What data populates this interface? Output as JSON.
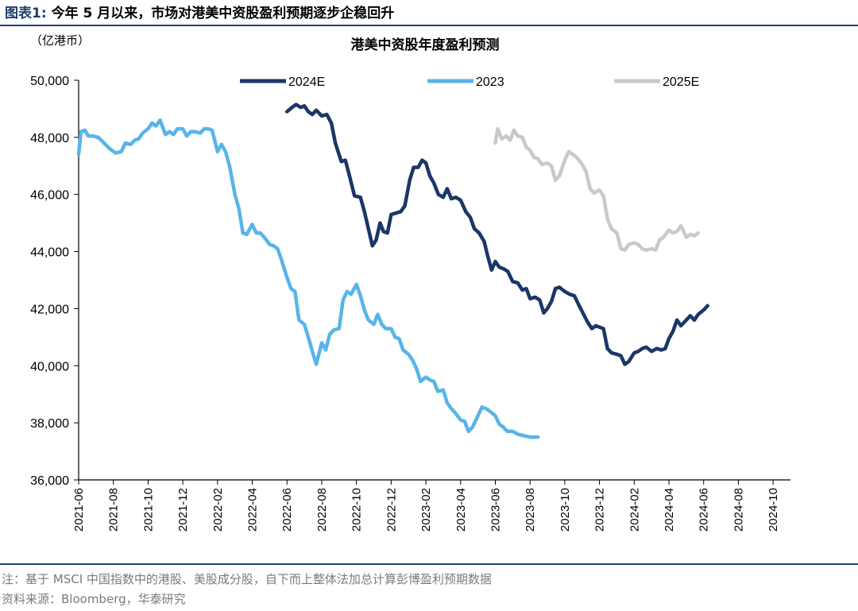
{
  "header": {
    "figure_label": "图表1:",
    "figure_title": "今年 5 月以来，市场对港美中资股盈利预期逐步企稳回升"
  },
  "footer": {
    "note": "注：基于 MSCI 中国指数中的港股、美股成分股，自下而上整体法加总计算彭博盈利预期数据",
    "source": "资料来源：Bloomberg，华泰研究"
  },
  "colors": {
    "rule": "#1f3f6e",
    "series_2024E": "#1b3668",
    "series_2023": "#58b4e8",
    "series_2025E": "#c9c9c9"
  },
  "chart_data": {
    "type": "line",
    "title": "港美中资股年度盈利预测",
    "unit_label": "（亿港币）",
    "ylim": [
      36000,
      50000
    ],
    "yticks": [
      36000,
      38000,
      40000,
      42000,
      44000,
      46000,
      48000,
      50000
    ],
    "ytick_labels": [
      "36,000",
      "38,000",
      "40,000",
      "42,000",
      "44,000",
      "46,000",
      "48,000",
      "50,000"
    ],
    "xlim": [
      "2021-06",
      "2024-11"
    ],
    "xtick_labels": [
      "2021-06",
      "2021-08",
      "2021-10",
      "2021-12",
      "2022-02",
      "2022-04",
      "2022-06",
      "2022-08",
      "2022-10",
      "2022-12",
      "2023-02",
      "2023-04",
      "2023-06",
      "2023-08",
      "2023-10",
      "2023-12",
      "2024-02",
      "2024-04",
      "2024-06",
      "2024-08",
      "2024-10"
    ],
    "grid": false,
    "legend_position": "top",
    "series": [
      {
        "name": "2024E",
        "color": "#1b3668",
        "points": [
          [
            "2022-06-01",
            48900
          ],
          [
            "2022-06-10",
            49050
          ],
          [
            "2022-06-17",
            49150
          ],
          [
            "2022-06-25",
            49050
          ],
          [
            "2022-07-01",
            49100
          ],
          [
            "2022-07-08",
            48900
          ],
          [
            "2022-07-15",
            48800
          ],
          [
            "2022-07-22",
            48950
          ],
          [
            "2022-08-01",
            48750
          ],
          [
            "2022-08-10",
            48800
          ],
          [
            "2022-08-18",
            48500
          ],
          [
            "2022-08-25",
            47800
          ],
          [
            "2022-09-05",
            47150
          ],
          [
            "2022-09-12",
            47200
          ],
          [
            "2022-09-20",
            46600
          ],
          [
            "2022-09-28",
            45950
          ],
          [
            "2022-10-08",
            45900
          ],
          [
            "2022-10-15",
            45400
          ],
          [
            "2022-10-22",
            44800
          ],
          [
            "2022-10-29",
            44200
          ],
          [
            "2022-11-05",
            44400
          ],
          [
            "2022-11-12",
            45000
          ],
          [
            "2022-11-18",
            44700
          ],
          [
            "2022-11-25",
            44650
          ],
          [
            "2022-12-01",
            45300
          ],
          [
            "2022-12-10",
            45350
          ],
          [
            "2022-12-18",
            45400
          ],
          [
            "2022-12-25",
            45600
          ],
          [
            "2023-01-03",
            46500
          ],
          [
            "2023-01-10",
            46950
          ],
          [
            "2023-01-18",
            46950
          ],
          [
            "2023-01-25",
            47200
          ],
          [
            "2023-02-01",
            47100
          ],
          [
            "2023-02-08",
            46650
          ],
          [
            "2023-02-15",
            46400
          ],
          [
            "2023-02-23",
            46000
          ],
          [
            "2023-03-01",
            45900
          ],
          [
            "2023-03-08",
            46200
          ],
          [
            "2023-03-15",
            45850
          ],
          [
            "2023-03-23",
            45900
          ],
          [
            "2023-04-01",
            45800
          ],
          [
            "2023-04-10",
            45400
          ],
          [
            "2023-04-18",
            45200
          ],
          [
            "2023-04-25",
            44800
          ],
          [
            "2023-05-03",
            44650
          ],
          [
            "2023-05-12",
            44350
          ],
          [
            "2023-05-18",
            43850
          ],
          [
            "2023-05-25",
            43350
          ],
          [
            "2023-06-01",
            43650
          ],
          [
            "2023-06-08",
            43450
          ],
          [
            "2023-06-15",
            43400
          ],
          [
            "2023-06-23",
            43300
          ],
          [
            "2023-07-01",
            42950
          ],
          [
            "2023-07-10",
            42900
          ],
          [
            "2023-07-18",
            42650
          ],
          [
            "2023-07-25",
            42700
          ],
          [
            "2023-08-01",
            42350
          ],
          [
            "2023-08-10",
            42400
          ],
          [
            "2023-08-18",
            42300
          ],
          [
            "2023-08-25",
            41850
          ],
          [
            "2023-09-01",
            42000
          ],
          [
            "2023-09-08",
            42250
          ],
          [
            "2023-09-15",
            42700
          ],
          [
            "2023-09-22",
            42750
          ],
          [
            "2023-10-01",
            42600
          ],
          [
            "2023-10-10",
            42500
          ],
          [
            "2023-10-18",
            42450
          ],
          [
            "2023-10-25",
            42150
          ],
          [
            "2023-11-01",
            41900
          ],
          [
            "2023-11-10",
            41550
          ],
          [
            "2023-11-18",
            41300
          ],
          [
            "2023-11-25",
            41400
          ],
          [
            "2023-12-01",
            41350
          ],
          [
            "2023-12-08",
            41300
          ],
          [
            "2023-12-15",
            40600
          ],
          [
            "2023-12-22",
            40450
          ],
          [
            "2024-01-01",
            40400
          ],
          [
            "2024-01-08",
            40350
          ],
          [
            "2024-01-15",
            40050
          ],
          [
            "2024-01-22",
            40150
          ],
          [
            "2024-02-01",
            40450
          ],
          [
            "2024-02-08",
            40500
          ],
          [
            "2024-02-15",
            40600
          ],
          [
            "2024-02-22",
            40650
          ],
          [
            "2024-03-01",
            40500
          ],
          [
            "2024-03-10",
            40600
          ],
          [
            "2024-03-18",
            40550
          ],
          [
            "2024-03-25",
            40600
          ],
          [
            "2024-04-01",
            40950
          ],
          [
            "2024-04-08",
            41200
          ],
          [
            "2024-04-15",
            41600
          ],
          [
            "2024-04-22",
            41400
          ],
          [
            "2024-05-01",
            41600
          ],
          [
            "2024-05-08",
            41750
          ],
          [
            "2024-05-15",
            41600
          ],
          [
            "2024-05-22",
            41800
          ],
          [
            "2024-06-01",
            41950
          ],
          [
            "2024-06-08",
            42100
          ]
        ]
      },
      {
        "name": "2023",
        "color": "#58b4e8",
        "points": [
          [
            "2021-06-01",
            47400
          ],
          [
            "2021-06-05",
            48200
          ],
          [
            "2021-06-12",
            48250
          ],
          [
            "2021-06-18",
            48050
          ],
          [
            "2021-06-25",
            48050
          ],
          [
            "2021-07-05",
            48000
          ],
          [
            "2021-07-15",
            47800
          ],
          [
            "2021-07-25",
            47600
          ],
          [
            "2021-08-05",
            47450
          ],
          [
            "2021-08-15",
            47500
          ],
          [
            "2021-08-22",
            47800
          ],
          [
            "2021-09-01",
            47750
          ],
          [
            "2021-09-08",
            47900
          ],
          [
            "2021-09-15",
            47950
          ],
          [
            "2021-09-22",
            48150
          ],
          [
            "2021-10-01",
            48300
          ],
          [
            "2021-10-08",
            48500
          ],
          [
            "2021-10-15",
            48400
          ],
          [
            "2021-10-22",
            48600
          ],
          [
            "2021-11-01",
            48100
          ],
          [
            "2021-11-08",
            48200
          ],
          [
            "2021-11-15",
            48100
          ],
          [
            "2021-11-22",
            48300
          ],
          [
            "2021-12-01",
            48300
          ],
          [
            "2021-12-08",
            48050
          ],
          [
            "2021-12-15",
            48200
          ],
          [
            "2021-12-22",
            48200
          ],
          [
            "2022-01-01",
            48150
          ],
          [
            "2022-01-08",
            48300
          ],
          [
            "2022-01-15",
            48300
          ],
          [
            "2022-01-22",
            48250
          ],
          [
            "2022-02-01",
            47500
          ],
          [
            "2022-02-08",
            47750
          ],
          [
            "2022-02-15",
            47500
          ],
          [
            "2022-02-22",
            47000
          ],
          [
            "2022-03-01",
            46000
          ],
          [
            "2022-03-08",
            45500
          ],
          [
            "2022-03-15",
            44650
          ],
          [
            "2022-03-22",
            44600
          ],
          [
            "2022-04-01",
            44950
          ],
          [
            "2022-04-08",
            44650
          ],
          [
            "2022-04-15",
            44650
          ],
          [
            "2022-04-22",
            44500
          ],
          [
            "2022-05-01",
            44250
          ],
          [
            "2022-05-08",
            44200
          ],
          [
            "2022-05-15",
            44100
          ],
          [
            "2022-05-22",
            43700
          ],
          [
            "2022-06-01",
            43100
          ],
          [
            "2022-06-08",
            42700
          ],
          [
            "2022-06-15",
            42600
          ],
          [
            "2022-06-22",
            41600
          ],
          [
            "2022-07-01",
            41450
          ],
          [
            "2022-07-08",
            41000
          ],
          [
            "2022-07-15",
            40500
          ],
          [
            "2022-07-22",
            40050
          ],
          [
            "2022-08-01",
            40800
          ],
          [
            "2022-08-08",
            40550
          ],
          [
            "2022-08-15",
            41100
          ],
          [
            "2022-08-22",
            41250
          ],
          [
            "2022-09-01",
            41300
          ],
          [
            "2022-09-08",
            42300
          ],
          [
            "2022-09-15",
            42600
          ],
          [
            "2022-09-22",
            42500
          ],
          [
            "2022-10-01",
            42850
          ],
          [
            "2022-10-08",
            42450
          ],
          [
            "2022-10-15",
            41950
          ],
          [
            "2022-10-22",
            41600
          ],
          [
            "2022-11-01",
            41450
          ],
          [
            "2022-11-08",
            41800
          ],
          [
            "2022-11-15",
            41450
          ],
          [
            "2022-11-22",
            41300
          ],
          [
            "2022-12-01",
            41300
          ],
          [
            "2022-12-08",
            41000
          ],
          [
            "2022-12-15",
            40950
          ],
          [
            "2022-12-22",
            40550
          ],
          [
            "2023-01-01",
            40400
          ],
          [
            "2023-01-08",
            40200
          ],
          [
            "2023-01-15",
            39900
          ],
          [
            "2023-01-22",
            39450
          ],
          [
            "2023-02-01",
            39600
          ],
          [
            "2023-02-08",
            39500
          ],
          [
            "2023-02-15",
            39450
          ],
          [
            "2023-02-22",
            39100
          ],
          [
            "2023-03-01",
            39150
          ],
          [
            "2023-03-08",
            38700
          ],
          [
            "2023-03-15",
            38500
          ],
          [
            "2023-03-22",
            38350
          ],
          [
            "2023-04-01",
            38100
          ],
          [
            "2023-04-08",
            38050
          ],
          [
            "2023-04-15",
            37700
          ],
          [
            "2023-04-22",
            37850
          ],
          [
            "2023-05-01",
            38250
          ],
          [
            "2023-05-08",
            38550
          ],
          [
            "2023-05-15",
            38500
          ],
          [
            "2023-05-22",
            38400
          ],
          [
            "2023-06-01",
            38250
          ],
          [
            "2023-06-08",
            37950
          ],
          [
            "2023-06-15",
            37850
          ],
          [
            "2023-06-22",
            37700
          ],
          [
            "2023-07-01",
            37700
          ],
          [
            "2023-07-10",
            37600
          ],
          [
            "2023-07-20",
            37550
          ],
          [
            "2023-08-01",
            37500
          ],
          [
            "2023-08-15",
            37500
          ]
        ]
      },
      {
        "name": "2025E",
        "color": "#c9c9c9",
        "points": [
          [
            "2023-06-01",
            47800
          ],
          [
            "2023-06-05",
            48300
          ],
          [
            "2023-06-12",
            47950
          ],
          [
            "2023-06-20",
            48050
          ],
          [
            "2023-06-27",
            47900
          ],
          [
            "2023-07-03",
            48250
          ],
          [
            "2023-07-10",
            48050
          ],
          [
            "2023-07-18",
            48000
          ],
          [
            "2023-07-25",
            47650
          ],
          [
            "2023-08-01",
            47550
          ],
          [
            "2023-08-08",
            47300
          ],
          [
            "2023-08-15",
            47250
          ],
          [
            "2023-08-22",
            47050
          ],
          [
            "2023-09-01",
            47100
          ],
          [
            "2023-09-08",
            47000
          ],
          [
            "2023-09-15",
            46500
          ],
          [
            "2023-09-22",
            46650
          ],
          [
            "2023-10-01",
            47200
          ],
          [
            "2023-10-08",
            47500
          ],
          [
            "2023-10-15",
            47400
          ],
          [
            "2023-10-22",
            47300
          ],
          [
            "2023-11-01",
            47050
          ],
          [
            "2023-11-08",
            46800
          ],
          [
            "2023-11-15",
            46200
          ],
          [
            "2023-11-22",
            46050
          ],
          [
            "2023-12-01",
            46150
          ],
          [
            "2023-12-08",
            45950
          ],
          [
            "2023-12-15",
            45150
          ],
          [
            "2023-12-22",
            44800
          ],
          [
            "2024-01-01",
            44650
          ],
          [
            "2024-01-08",
            44100
          ],
          [
            "2024-01-15",
            44050
          ],
          [
            "2024-01-22",
            44250
          ],
          [
            "2024-02-01",
            44300
          ],
          [
            "2024-02-08",
            44250
          ],
          [
            "2024-02-15",
            44100
          ],
          [
            "2024-02-22",
            44050
          ],
          [
            "2024-03-01",
            44100
          ],
          [
            "2024-03-08",
            44050
          ],
          [
            "2024-03-15",
            44400
          ],
          [
            "2024-03-22",
            44500
          ],
          [
            "2024-04-01",
            44750
          ],
          [
            "2024-04-08",
            44650
          ],
          [
            "2024-04-15",
            44700
          ],
          [
            "2024-04-22",
            44900
          ],
          [
            "2024-05-01",
            44500
          ],
          [
            "2024-05-08",
            44600
          ],
          [
            "2024-05-15",
            44550
          ],
          [
            "2024-05-22",
            44650
          ]
        ]
      }
    ]
  }
}
